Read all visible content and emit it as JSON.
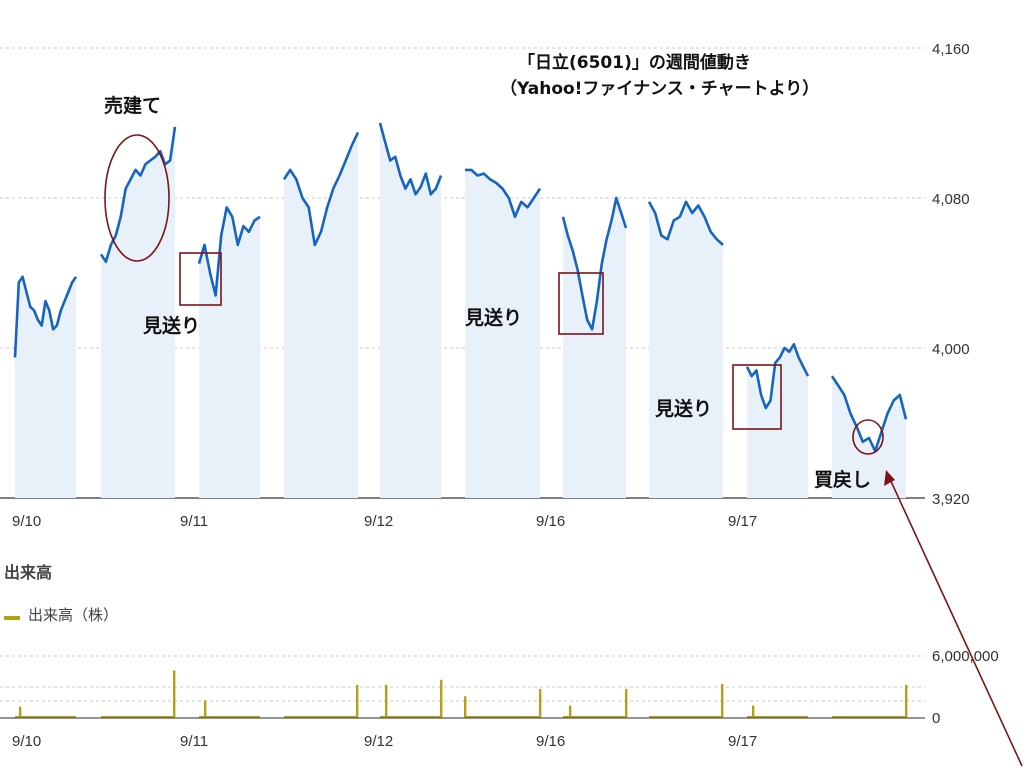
{
  "chart_data": {
    "type": "line",
    "title": "「日立(6501)」の週間値動き",
    "subtitle": "（Yahoo!ファイナンス・チャートより）",
    "y_ticks": [
      "4,160",
      "4,080",
      "4,000",
      "3,920"
    ],
    "ylim": [
      3920,
      4160
    ],
    "x_ticks": [
      "9/10",
      "9/11",
      "9/12",
      "9/16",
      "9/17"
    ],
    "grid": true,
    "series": [
      {
        "values": [
          [
            3995,
            4035,
            4038,
            4030,
            4022,
            4020,
            4015,
            4012,
            4025,
            4020,
            4010,
            4012,
            4020,
            4025,
            4030,
            4035,
            4038
          ],
          [
            4050,
            4046,
            4055,
            4060,
            4070,
            4085,
            4090,
            4095,
            4092,
            4098,
            4100,
            4102,
            4105,
            4098,
            4100,
            4118
          ],
          [
            4045,
            4055,
            4040,
            4028,
            4060,
            4075,
            4070,
            4055,
            4065,
            4062,
            4068,
            4070
          ],
          [
            4090,
            4095,
            4090,
            4080,
            4075,
            4055,
            4062,
            4075,
            4085,
            4092,
            4100,
            4108,
            4115
          ],
          [
            4120,
            4110,
            4100,
            4102,
            4092,
            4085,
            4090,
            4082,
            4086,
            4093,
            4082,
            4085,
            4092
          ],
          [
            4095,
            4095,
            4092,
            4093,
            4090,
            4088,
            4085,
            4080,
            4070,
            4078,
            4075,
            4080,
            4085
          ],
          [
            4070,
            4060,
            4052,
            4042,
            4028,
            4015,
            4010,
            4025,
            4045,
            4058,
            4068,
            4080,
            4072,
            4064
          ],
          [
            4078,
            4072,
            4060,
            4058,
            4068,
            4070,
            4078,
            4072,
            4076,
            4070,
            4062,
            4058,
            4055
          ],
          [
            3990,
            3985,
            3988,
            3975,
            3968,
            3972,
            3992,
            3995,
            4000,
            3998,
            4002,
            3995,
            3990,
            3985
          ],
          [
            3985,
            3980,
            3975,
            3965,
            3958,
            3950,
            3952,
            3945,
            3955,
            3965,
            3972,
            3975,
            3962
          ]
        ]
      }
    ],
    "volume": {
      "section_label": "出来高",
      "legend_label": "出来高（株）",
      "y_ticks": [
        "6,000,000",
        "0"
      ],
      "ylim": [
        0,
        6000000
      ],
      "baseline": 200000,
      "spikes": [
        1100000,
        4600000,
        1700000,
        3200000,
        3200000,
        3700000,
        2100000,
        2800000,
        1200000,
        2800000,
        3300000,
        1200000,
        3200000
      ]
    },
    "annotations": {
      "sell": "売建て",
      "skip_1": "見送り",
      "skip_2": "見送り",
      "skip_3": "見送り",
      "buyback": "買戻し"
    },
    "colors": {
      "line": "#1565c0",
      "fill": "#e8f0fa",
      "volume": "#b6a014",
      "annotation": "#7b1414",
      "grid": "#c8c8c8"
    }
  }
}
